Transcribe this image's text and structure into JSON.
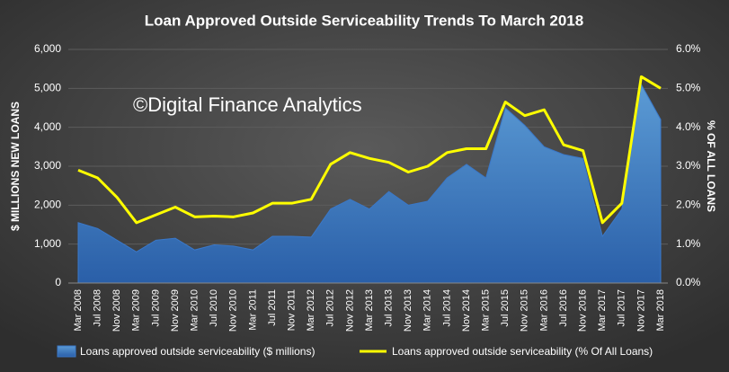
{
  "chart_data": {
    "type": "area_line",
    "title": "Loan Approved Outside Serviceability Trends To March 2018",
    "annotation": "©Digital Finance Analytics",
    "ylabel": "$ MILLIONS NEW LOANS",
    "y2label": "% OF ALL LOANS",
    "categories": [
      "Mar 2008",
      "Jul 2008",
      "Nov 2008",
      "Mar 2009",
      "Jul 2009",
      "Nov 2009",
      "Mar 2010",
      "Jul 2010",
      "Nov 2010",
      "Mar 2011",
      "Jul 2011",
      "Nov 2011",
      "Mar 2012",
      "Jul 2012",
      "Nov 2012",
      "Mar 2013",
      "Jul 2013",
      "Nov 2013",
      "Mar 2014",
      "Jul 2014",
      "Nov 2014",
      "Mar 2015",
      "Jul 2015",
      "Nov 2015",
      "Mar 2016",
      "Jul 2016",
      "Nov 2016",
      "Mar 2017",
      "Jul 2017",
      "Nov 2017",
      "Mar 2018"
    ],
    "series": [
      {
        "name": "Loans approved outside serviceability ($ millions)",
        "type": "area",
        "color": "#3a78c9",
        "axis": "y",
        "values": [
          1550,
          1400,
          1100,
          800,
          1100,
          1150,
          850,
          980,
          950,
          850,
          1200,
          1200,
          1180,
          1900,
          2150,
          1900,
          2350,
          2000,
          2100,
          2700,
          3050,
          2700,
          4500,
          4050,
          3500,
          3300,
          3200,
          1200,
          1900,
          5100,
          4200
        ]
      },
      {
        "name": "Loans approved outside serviceability (% Of All Loans)",
        "type": "line",
        "color": "#ffff00",
        "axis": "y2",
        "values": [
          2.9,
          2.7,
          2.2,
          1.55,
          1.75,
          1.95,
          1.7,
          1.72,
          1.7,
          1.8,
          2.05,
          2.05,
          2.15,
          3.05,
          3.35,
          3.2,
          3.1,
          2.85,
          3.0,
          3.35,
          3.45,
          3.45,
          4.65,
          4.3,
          4.45,
          3.55,
          3.4,
          1.55,
          2.05,
          5.3,
          5.0
        ]
      }
    ],
    "ylim": [
      0,
      6000
    ],
    "yticks": [
      0,
      {
        "value": 1000,
        "label": "1,000"
      },
      {
        "value": 2000,
        "label": "2,000"
      },
      {
        "value": 3000,
        "label": "3,000"
      },
      {
        "value": 4000,
        "label": "4,000"
      },
      {
        "value": 5000,
        "label": "5,000"
      },
      {
        "value": 6000,
        "label": "6,000"
      }
    ],
    "y2lim": [
      0,
      6
    ],
    "y2ticks": [
      {
        "value": 0,
        "label": "0.0%"
      },
      {
        "value": 1,
        "label": "1.0%"
      },
      {
        "value": 2,
        "label": "2.0%"
      },
      {
        "value": 3,
        "label": "3.0%"
      },
      {
        "value": 4,
        "label": "4.0%"
      },
      {
        "value": 5,
        "label": "5.0%"
      },
      {
        "value": 6,
        "label": "6.0%"
      }
    ],
    "grid": true
  }
}
